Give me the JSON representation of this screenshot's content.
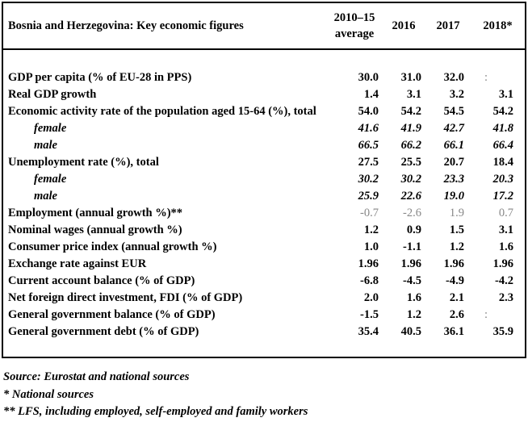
{
  "table": {
    "title": "Bosnia and Herzegovina: Key economic figures",
    "columns": {
      "avg": {
        "line1": "2010–15",
        "line2": "average"
      },
      "years": [
        "2016",
        "2017",
        "2018*"
      ]
    },
    "rows": [
      {
        "label": "GDP per capita (% of EU-28 in PPS)",
        "values": [
          "30.0",
          "31.0",
          "32.0",
          ":"
        ]
      },
      {
        "label": "Real GDP growth",
        "values": [
          "1.4",
          "3.1",
          "3.2",
          "3.1"
        ]
      },
      {
        "label": "Economic activity rate of the population aged 15-64 (%), total",
        "values": [
          "54.0",
          "54.2",
          "54.5",
          "54.2"
        ]
      },
      {
        "label": "female",
        "values": [
          "41.6",
          "41.9",
          "42.7",
          "41.8"
        ]
      },
      {
        "label": "male",
        "values": [
          "66.5",
          "66.2",
          "66.1",
          "66.4"
        ]
      },
      {
        "label": "Unemployment rate (%), total",
        "values": [
          "27.5",
          "25.5",
          "20.7",
          "18.4"
        ]
      },
      {
        "label": "female",
        "values": [
          "30.2",
          "30.2",
          "23.3",
          "20.3"
        ]
      },
      {
        "label": "male",
        "values": [
          "25.9",
          "22.6",
          "19.0",
          "17.2"
        ]
      },
      {
        "label": "Employment (annual growth %)**",
        "values": [
          "-0.7",
          "-2.6",
          "1.9",
          "0.7"
        ]
      },
      {
        "label": "Nominal wages (annual growth %)",
        "values": [
          "1.2",
          "0.9",
          "1.5",
          "3.1"
        ]
      },
      {
        "label": "Consumer price index (annual growth %)",
        "values": [
          "1.0",
          "-1.1",
          "1.2",
          "1.6"
        ]
      },
      {
        "label": "Exchange rate against EUR",
        "values": [
          "1.96",
          "1.96",
          "1.96",
          "1.96"
        ]
      },
      {
        "label": "Current account balance (% of GDP)",
        "values": [
          "-6.8",
          "-4.5",
          "-4.9",
          "-4.2"
        ]
      },
      {
        "label": "Net foreign direct investment, FDI (% of GDP)",
        "values": [
          "2.0",
          "1.6",
          "2.1",
          "2.3"
        ]
      },
      {
        "label": "General government balance (% of GDP)",
        "values": [
          "-1.5",
          "1.2",
          "2.6",
          ":"
        ]
      },
      {
        "label": "General government debt (% of GDP)",
        "values": [
          "35.4",
          "40.5",
          "36.1",
          "35.9"
        ]
      }
    ]
  },
  "notes": [
    "Source: Eurostat and national sources",
    "* National sources",
    "** LFS, including employed, self-employed and family workers"
  ],
  "colors": {
    "text": "#000000",
    "muted_value": "#888888",
    "border": "#000000",
    "background": "#ffffff"
  }
}
